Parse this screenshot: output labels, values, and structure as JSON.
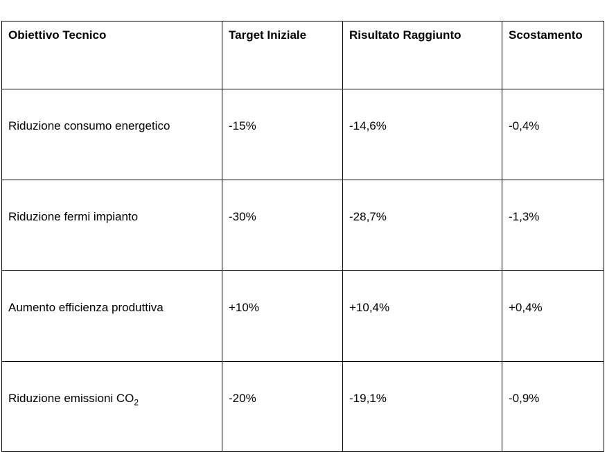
{
  "table": {
    "headers": [
      "Obiettivo Tecnico",
      "Target Iniziale",
      "Risultato Raggiunto",
      "Scostamento"
    ],
    "rows": [
      {
        "obiettivo": "Riduzione consumo energetico",
        "target": "-15%",
        "risultato": "-14,6%",
        "scostamento": "-0,4%"
      },
      {
        "obiettivo": "Riduzione fermi impianto",
        "target": "-30%",
        "risultato": "-28,7%",
        "scostamento": "-1,3%"
      },
      {
        "obiettivo": "Aumento efficienza produttiva",
        "target": "+10%",
        "risultato": "+10,4%",
        "scostamento": "+0,4%"
      },
      {
        "obiettivo": "Riduzione emissioni CO",
        "obiettivo_subscript": "2",
        "target": "-20%",
        "risultato": "-19,1%",
        "scostamento": "-0,9%"
      }
    ]
  }
}
